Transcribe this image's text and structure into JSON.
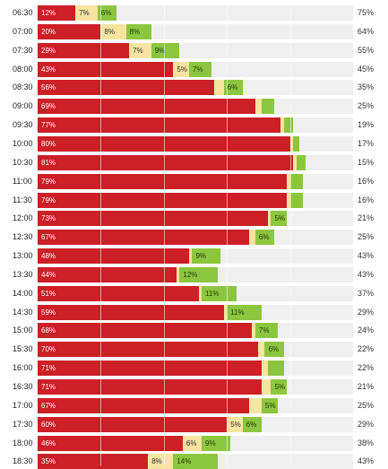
{
  "chart_data": {
    "type": "bar",
    "stacked": true,
    "orientation": "horizontal",
    "colors": {
      "red": "#cc1f26",
      "yellow": "#f7e4a0",
      "green": "#8cc63f",
      "rest": "#efefef"
    },
    "rows": [
      {
        "time": "06:30",
        "red": 12,
        "yellow": 7,
        "green": 6,
        "rest": 75,
        "labels": {
          "red": "12%",
          "yellow": "7%",
          "green": "6%"
        }
      },
      {
        "time": "07:00",
        "red": 20,
        "yellow": 8,
        "green": 8,
        "rest": 64,
        "labels": {
          "red": "20%",
          "yellow": "8%",
          "green": "8%"
        }
      },
      {
        "time": "07:30",
        "red": 29,
        "yellow": 7,
        "green": 9,
        "rest": 55,
        "labels": {
          "red": "29%",
          "yellow": "7%",
          "green": "9%"
        }
      },
      {
        "time": "08:00",
        "red": 43,
        "yellow": 5,
        "green": 7,
        "rest": 45,
        "labels": {
          "red": "43%",
          "yellow": "5%",
          "green": "7%"
        }
      },
      {
        "time": "08:30",
        "red": 56,
        "yellow": 3,
        "green": 6,
        "rest": 35,
        "labels": {
          "red": "56%",
          "yellow": "",
          "green": "6%"
        }
      },
      {
        "time": "09:00",
        "red": 69,
        "yellow": 2,
        "green": 4,
        "rest": 25,
        "labels": {
          "red": "69%",
          "yellow": "",
          "green": ""
        }
      },
      {
        "time": "09:30",
        "red": 77,
        "yellow": 1,
        "green": 3,
        "rest": 19,
        "labels": {
          "red": "77%",
          "yellow": "",
          "green": ""
        }
      },
      {
        "time": "10:00",
        "red": 80,
        "yellow": 1,
        "green": 2,
        "rest": 17,
        "labels": {
          "red": "80%",
          "yellow": "",
          "green": ""
        }
      },
      {
        "time": "10:30",
        "red": 81,
        "yellow": 1,
        "green": 3,
        "rest": 15,
        "labels": {
          "red": "81%",
          "yellow": "",
          "green": ""
        }
      },
      {
        "time": "11:00",
        "red": 79,
        "yellow": 1,
        "green": 4,
        "rest": 16,
        "labels": {
          "red": "79%",
          "yellow": "",
          "green": ""
        }
      },
      {
        "time": "11:30",
        "red": 79,
        "yellow": 1,
        "green": 4,
        "rest": 16,
        "labels": {
          "red": "79%",
          "yellow": "",
          "green": ""
        }
      },
      {
        "time": "12:00",
        "red": 73,
        "yellow": 1,
        "green": 5,
        "rest": 21,
        "labels": {
          "red": "73%",
          "yellow": "",
          "green": "5%"
        }
      },
      {
        "time": "12:30",
        "red": 67,
        "yellow": 2,
        "green": 6,
        "rest": 25,
        "labels": {
          "red": "67%",
          "yellow": "",
          "green": "6%"
        }
      },
      {
        "time": "13:00",
        "red": 48,
        "yellow": 1,
        "green": 9,
        "rest": 43,
        "labels": {
          "red": "48%",
          "yellow": "",
          "green": "9%"
        }
      },
      {
        "time": "13:30",
        "red": 44,
        "yellow": 1,
        "green": 12,
        "rest": 43,
        "labels": {
          "red": "44%",
          "yellow": "",
          "green": "12%"
        }
      },
      {
        "time": "14:00",
        "red": 51,
        "yellow": 1,
        "green": 11,
        "rest": 37,
        "labels": {
          "red": "51%",
          "yellow": "",
          "green": "11%"
        }
      },
      {
        "time": "14:30",
        "red": 59,
        "yellow": 1,
        "green": 11,
        "rest": 29,
        "labels": {
          "red": "59%",
          "yellow": "",
          "green": "11%"
        }
      },
      {
        "time": "15:00",
        "red": 68,
        "yellow": 1,
        "green": 7,
        "rest": 24,
        "labels": {
          "red": "68%",
          "yellow": "",
          "green": "7%"
        }
      },
      {
        "time": "15:30",
        "red": 70,
        "yellow": 2,
        "green": 6,
        "rest": 22,
        "labels": {
          "red": "70%",
          "yellow": "",
          "green": "6%"
        }
      },
      {
        "time": "16:00",
        "red": 71,
        "yellow": 2,
        "green": 5,
        "rest": 22,
        "labels": {
          "red": "71%",
          "yellow": "",
          "green": ""
        }
      },
      {
        "time": "16:30",
        "red": 71,
        "yellow": 3,
        "green": 5,
        "rest": 21,
        "labels": {
          "red": "71%",
          "yellow": "",
          "green": "5%"
        }
      },
      {
        "time": "17:00",
        "red": 67,
        "yellow": 4,
        "green": 5,
        "rest": 25,
        "labels": {
          "red": "67%",
          "yellow": "",
          "green": "5%"
        }
      },
      {
        "time": "17:30",
        "red": 60,
        "yellow": 5,
        "green": 6,
        "rest": 29,
        "labels": {
          "red": "60%",
          "yellow": "5%",
          "green": "6%"
        }
      },
      {
        "time": "18:00",
        "red": 46,
        "yellow": 6,
        "green": 9,
        "rest": 38,
        "labels": {
          "red": "46%",
          "yellow": "6%",
          "green": "9%"
        }
      },
      {
        "time": "18:30",
        "red": 35,
        "yellow": 8,
        "green": 14,
        "rest": 43,
        "labels": {
          "red": "35%",
          "yellow": "8%",
          "green": "14%"
        }
      }
    ]
  }
}
